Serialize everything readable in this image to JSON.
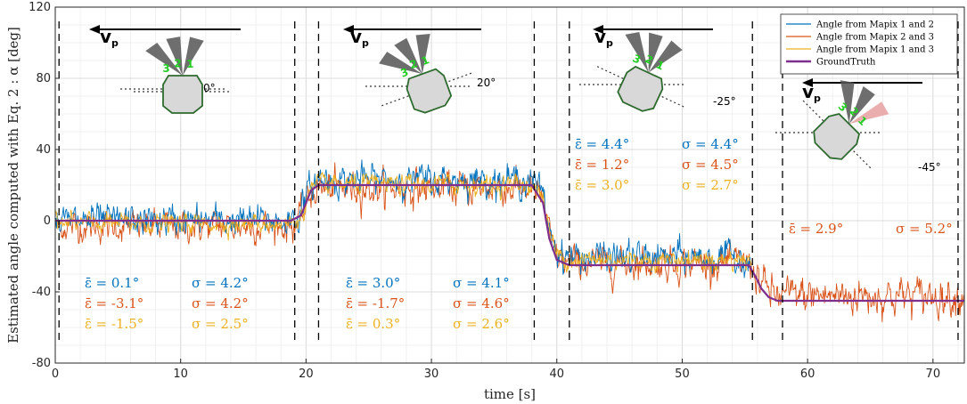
{
  "chart_data": {
    "type": "line",
    "xlabel": "time [s]",
    "ylabel": "Estimated angle computed with Eq. 2 : α [deg]",
    "xlim": [
      0,
      72.5
    ],
    "ylim": [
      -80,
      120
    ],
    "xticks": [
      "0",
      "10",
      "20",
      "30",
      "40",
      "50",
      "60",
      "70"
    ],
    "yticks": [
      "120",
      "80",
      "40",
      "0",
      "-40",
      "-80"
    ],
    "grid": true,
    "legend_position": "top-right",
    "legend": [
      {
        "name": "Angle from Mapix 1 and 2",
        "color": "#0072BD"
      },
      {
        "name": "Angle from Mapix 2 and 3",
        "color": "#D95319"
      },
      {
        "name": "Angle from Mapix 1 and 3",
        "color": "#EDB120"
      },
      {
        "name": "GroundTruth",
        "color": "#7E2F8E"
      }
    ],
    "ground_truth": {
      "x": [
        0,
        18.8,
        19.6,
        20.0,
        20.4,
        21.0,
        38.0,
        38.9,
        39.4,
        40.0,
        41.0,
        55.3,
        55.9,
        56.3,
        56.9,
        57.6,
        72.5
      ],
      "y": [
        0,
        0,
        3,
        10,
        17,
        20,
        20,
        10,
        -10,
        -22,
        -25,
        -25,
        -32,
        -38,
        -43,
        -45,
        -45
      ]
    },
    "phases": [
      {
        "start": 0,
        "end": 19.5,
        "truth": 0,
        "sd": [
          4.2,
          4.2,
          2.5
        ],
        "bias": [
          0.1,
          -3.1,
          -1.5
        ]
      },
      {
        "start": 19.5,
        "end": 38.5,
        "truth": 20,
        "sd": [
          4.1,
          4.6,
          2.6
        ],
        "bias": [
          3.0,
          -1.7,
          0.3
        ]
      },
      {
        "start": 38.5,
        "end": 55.5,
        "truth": -25,
        "sd": [
          4.4,
          4.5,
          2.7
        ],
        "bias": [
          4.4,
          1.2,
          3.0
        ]
      },
      {
        "start": 55.5,
        "end": 72.5,
        "truth": -45,
        "sd": [
          0,
          5.2,
          0
        ],
        "bias": [
          0,
          2.9,
          0
        ]
      }
    ],
    "vertical_markers": [
      0.3,
      19.1,
      21.0,
      38.2,
      41.0,
      55.6,
      58.0,
      72.0
    ],
    "stats": [
      {
        "lines": [
          {
            "eps": "0.1°",
            "sigma": "4.2°",
            "color": "#0072BD"
          },
          {
            "eps": "-3.1°",
            "sigma": "4.2°",
            "color": "#D95319"
          },
          {
            "eps": "-1.5°",
            "sigma": "2.5°",
            "color": "#EDB120"
          }
        ]
      },
      {
        "lines": [
          {
            "eps": "3.0°",
            "sigma": "4.1°",
            "color": "#0072BD"
          },
          {
            "eps": "-1.7°",
            "sigma": "4.6°",
            "color": "#D95319"
          },
          {
            "eps": "0.3°",
            "sigma": "2.6°",
            "color": "#EDB120"
          }
        ]
      },
      {
        "lines": [
          {
            "eps": "4.4°",
            "sigma": "4.4°",
            "color": "#0072BD"
          },
          {
            "eps": "1.2°",
            "sigma": "4.5°",
            "color": "#D95319"
          },
          {
            "eps": "3.0°",
            "sigma": "2.7°",
            "color": "#EDB120"
          }
        ]
      },
      {
        "lines": [
          {
            "eps": "2.9°",
            "sigma": "5.2°",
            "color": "#D95319"
          }
        ]
      }
    ],
    "sensor_diagrams": [
      {
        "velocity": "v",
        "velocity_sub": "p",
        "angle": "0°",
        "rotation": 0,
        "beams": [
          "3",
          "2",
          "1"
        ]
      },
      {
        "velocity": "v",
        "velocity_sub": "p",
        "angle": "20°",
        "rotation": 20,
        "beams": [
          "3",
          "2",
          "1"
        ]
      },
      {
        "velocity": "v",
        "velocity_sub": "p",
        "angle": "-25°",
        "rotation": -25,
        "beams": [
          "3",
          "2",
          "1"
        ]
      },
      {
        "velocity": "v",
        "velocity_sub": "p",
        "angle": "-45°",
        "rotation": -45,
        "beams": [
          "3",
          "2",
          "1"
        ]
      }
    ]
  }
}
